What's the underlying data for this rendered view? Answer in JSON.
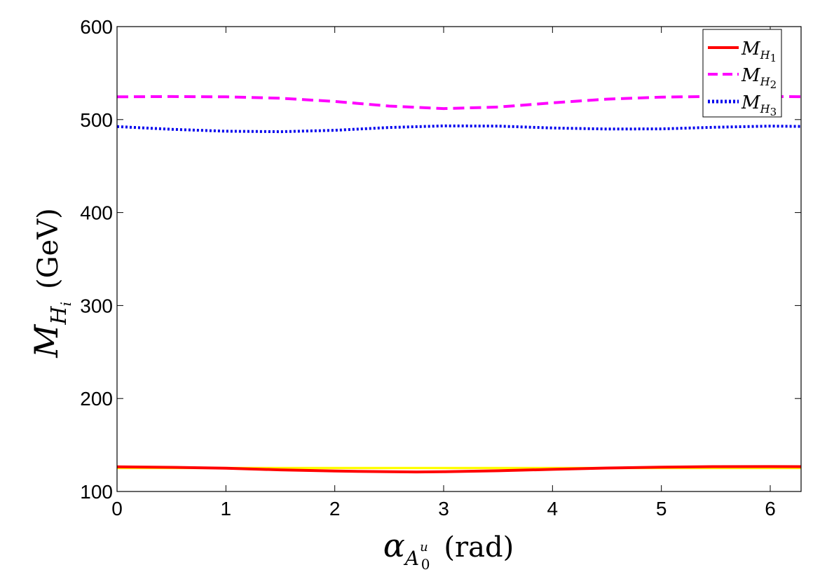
{
  "chart_data": {
    "type": "line",
    "xlabel": {
      "symbol": "α",
      "sub": "A",
      "subsub": "0",
      "sup": "u",
      "unit": "(rad)"
    },
    "ylabel": {
      "symbol": "M",
      "sub": "H",
      "subsub": "i",
      "unit": "(GeV)"
    },
    "xlim": [
      0,
      6.2832
    ],
    "ylim": [
      100,
      600
    ],
    "xticks": [
      0,
      1,
      2,
      3,
      4,
      5,
      6
    ],
    "yticks": [
      100,
      200,
      300,
      400,
      500,
      600
    ],
    "xtick_labels": [
      "0",
      "1",
      "2",
      "3",
      "4",
      "5",
      "6"
    ],
    "ytick_labels": [
      "100",
      "200",
      "300",
      "400",
      "500",
      "600"
    ],
    "grid": false,
    "legend_position": "top-right",
    "band": {
      "name": "yellow band",
      "color": "#ffff00",
      "y_low": 124.0,
      "y_high": 126.5
    },
    "series": [
      {
        "name": "M_H1",
        "legend": {
          "symbol": "M",
          "sub": "H",
          "subsub": "1"
        },
        "color": "#ff0000",
        "style": "solid",
        "x": [
          0,
          0.5,
          1.0,
          1.5,
          2.0,
          2.5,
          2.75,
          3.0,
          3.5,
          4.0,
          4.5,
          5.0,
          5.5,
          6.0,
          6.2832
        ],
        "y": [
          126.5,
          126.0,
          125.0,
          123.3,
          122.0,
          121.2,
          121.0,
          121.2,
          122.3,
          123.8,
          125.2,
          126.2,
          126.7,
          126.8,
          126.7
        ]
      },
      {
        "name": "M_H2",
        "legend": {
          "symbol": "M",
          "sub": "H",
          "subsub": "2"
        },
        "color": "#ff00ff",
        "style": "dashed",
        "x": [
          0,
          0.5,
          1.0,
          1.5,
          2.0,
          2.5,
          3.0,
          3.5,
          4.0,
          4.5,
          5.0,
          5.5,
          6.0,
          6.2832
        ],
        "y": [
          524.5,
          524.8,
          524.5,
          523.0,
          519.5,
          514.5,
          511.8,
          513.5,
          518.0,
          522.0,
          524.2,
          524.9,
          524.8,
          524.6
        ]
      },
      {
        "name": "M_H3",
        "legend": {
          "symbol": "M",
          "sub": "H",
          "subsub": "3"
        },
        "color": "#0000ee",
        "style": "dotted",
        "x": [
          0,
          0.5,
          1.0,
          1.5,
          2.0,
          2.5,
          3.0,
          3.5,
          4.0,
          4.5,
          5.0,
          5.5,
          6.0,
          6.2832
        ],
        "y": [
          492.5,
          489.5,
          487.5,
          487.0,
          488.5,
          491.5,
          493.2,
          493.0,
          491.0,
          489.8,
          490.0,
          491.8,
          493.0,
          492.6
        ]
      }
    ]
  }
}
